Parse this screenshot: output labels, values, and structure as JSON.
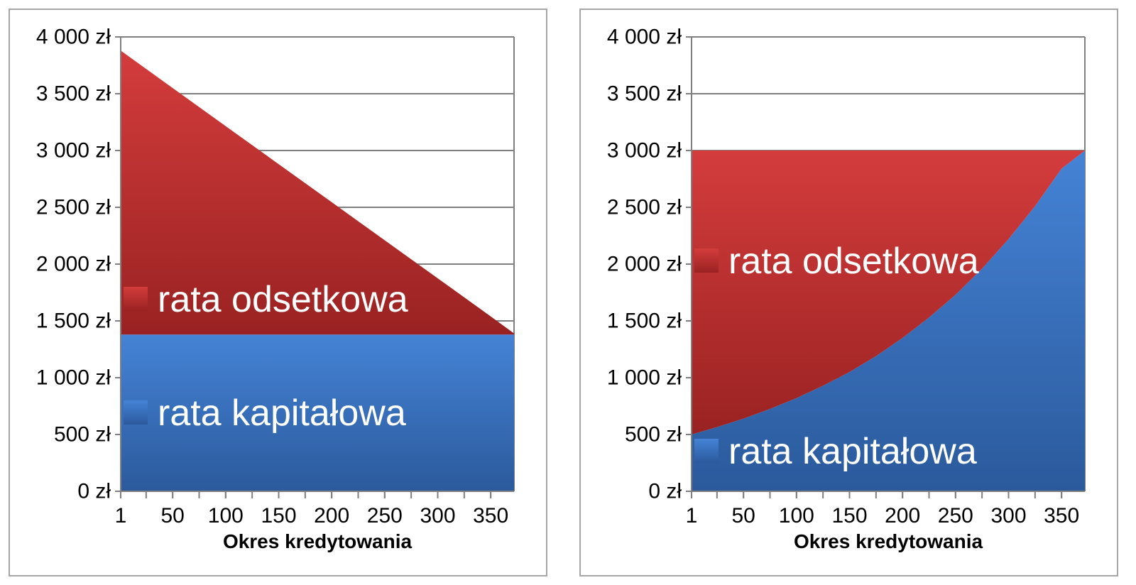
{
  "colors": {
    "interest_top": "#d43c3c",
    "interest_bottom": "#9a2222",
    "principal_top": "#4583d6",
    "principal_bottom": "#2b5a9c",
    "grid": "#7f7f7f",
    "axis": "#7f7f7f",
    "panel_border": "#a6a6a6",
    "legend_text": "#ffffff"
  },
  "chart_data": [
    {
      "type": "area",
      "stacked": true,
      "title": "",
      "xlabel": "Okres kredytowania",
      "ylabel": "",
      "xlim": [
        1,
        372
      ],
      "ylim": [
        0,
        4000
      ],
      "x_ticks": [
        1,
        50,
        100,
        150,
        200,
        250,
        300,
        350
      ],
      "x_tick_labels": [
        "1",
        "50",
        "100",
        "150",
        "200",
        "250",
        "300",
        "350"
      ],
      "y_ticks": [
        0,
        500,
        1000,
        1500,
        2000,
        2500,
        3000,
        3500,
        4000
      ],
      "y_tick_labels": [
        "0 zł",
        "500 zł",
        "1 000 zł",
        "1 500 zł",
        "2 000 zł",
        "2 500 zł",
        "3 000 zł",
        "3 500 zł",
        "4 000 zł"
      ],
      "grid": true,
      "legend_position": "inside-left",
      "x": [
        1,
        50,
        100,
        150,
        200,
        250,
        300,
        350,
        372
      ],
      "series": [
        {
          "name": "rata kapitałowa",
          "color_key": "principal",
          "values": [
            1380,
            1380,
            1380,
            1380,
            1380,
            1380,
            1380,
            1380,
            1380
          ]
        },
        {
          "name": "rata odsetkowa",
          "color_key": "interest",
          "values": [
            2500,
            2170,
            1835,
            1500,
            1165,
            830,
            495,
            160,
            10
          ]
        }
      ]
    },
    {
      "type": "area",
      "stacked": true,
      "title": "",
      "xlabel": "Okres kredytowania",
      "ylabel": "",
      "xlim": [
        1,
        372
      ],
      "ylim": [
        0,
        4000
      ],
      "x_ticks": [
        1,
        50,
        100,
        150,
        200,
        250,
        300,
        350
      ],
      "x_tick_labels": [
        "1",
        "50",
        "100",
        "150",
        "200",
        "250",
        "300",
        "350"
      ],
      "y_ticks": [
        0,
        500,
        1000,
        1500,
        2000,
        2500,
        3000,
        3500,
        4000
      ],
      "y_tick_labels": [
        "0 zł",
        "500 zł",
        "1 000 zł",
        "1 500 zł",
        "2 000 zł",
        "2 500 zł",
        "3 000 zł",
        "3 500 zł",
        "4 000 zł"
      ],
      "grid": true,
      "legend_position": "inside-left",
      "x": [
        1,
        25,
        50,
        75,
        100,
        125,
        150,
        175,
        200,
        225,
        250,
        275,
        300,
        325,
        350,
        372
      ],
      "series": [
        {
          "name": "rata kapitałowa",
          "color_key": "principal",
          "values": [
            500,
            565,
            640,
            725,
            820,
            930,
            1050,
            1190,
            1350,
            1530,
            1730,
            1960,
            2220,
            2510,
            2840,
            3000
          ]
        },
        {
          "name": "rata odsetkowa",
          "color_key": "interest",
          "values": [
            2500,
            2435,
            2360,
            2275,
            2180,
            2070,
            1950,
            1810,
            1650,
            1470,
            1270,
            1040,
            780,
            490,
            160,
            0
          ]
        }
      ]
    }
  ]
}
